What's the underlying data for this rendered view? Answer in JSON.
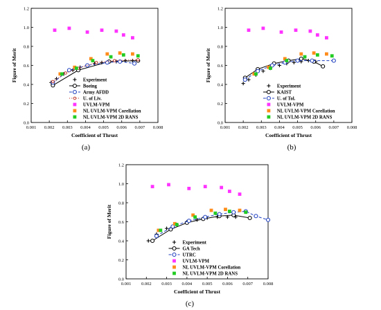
{
  "chart_data": [
    {
      "type": "scatter",
      "panel_label": "(a)",
      "xlabel": "Coefficient of Thrust",
      "ylabel": "Figure of Merit",
      "xlim": [
        0.001,
        0.008
      ],
      "ylim": [
        0.0,
        1.2
      ],
      "xticks": [
        "0.001",
        "0.002",
        "0.003",
        "0.004",
        "0.005",
        "0.006",
        "0.007",
        "0.008"
      ],
      "yticks": [
        "0.0",
        "0.2",
        "0.4",
        "0.6",
        "0.8",
        "1.0",
        "1.2"
      ],
      "legend_position": "bottom-right",
      "series": [
        {
          "name": "Experiment",
          "marker": "plus",
          "line": "none",
          "color": "#000000",
          "x": [
            0.0021,
            0.0024,
            0.0028,
            0.0033,
            0.0037,
            0.0041,
            0.0045,
            0.0049,
            0.0053,
            0.0057,
            0.0062,
            0.0066
          ],
          "y": [
            0.42,
            0.46,
            0.51,
            0.55,
            0.58,
            0.6,
            0.62,
            0.63,
            0.64,
            0.64,
            0.65,
            0.65
          ]
        },
        {
          "name": "Boeing",
          "marker": "circle",
          "line": "solid",
          "color": "#000000",
          "x": [
            0.0022,
            0.0036,
            0.0053,
            0.0069
          ],
          "y": [
            0.39,
            0.55,
            0.64,
            0.65
          ]
        },
        {
          "name": "Army AFDD",
          "marker": "circle",
          "line": "dash",
          "color": "#1f3fbf",
          "x": [
            0.0022,
            0.0031,
            0.0041,
            0.0052,
            0.0059,
            0.0067
          ],
          "y": [
            0.42,
            0.55,
            0.6,
            0.63,
            0.64,
            0.62
          ]
        },
        {
          "name": "U. of Liv.",
          "marker": "circle-small",
          "line": "dot",
          "color": "#c0392b",
          "x": [
            0.0022,
            0.0029,
            0.0036,
            0.0046,
            0.0056,
            0.0069
          ],
          "y": [
            0.43,
            0.52,
            0.57,
            0.63,
            0.65,
            0.66
          ]
        },
        {
          "name": "UVLM-VPM",
          "marker": "square",
          "line": "none",
          "color": "#ff33ff",
          "x": [
            0.0023,
            0.0031,
            0.0041,
            0.0049,
            0.0057,
            0.0061,
            0.0066
          ],
          "y": [
            0.97,
            0.99,
            0.95,
            0.97,
            0.96,
            0.92,
            0.89
          ]
        },
        {
          "name": "NL UVLM-VPM Corellation",
          "marker": "square",
          "line": "none",
          "color": "#ff8c1a",
          "x": [
            0.0026,
            0.0034,
            0.0043,
            0.0052,
            0.0059,
            0.0066
          ],
          "y": [
            0.51,
            0.58,
            0.67,
            0.72,
            0.73,
            0.72
          ]
        },
        {
          "name": "NL UVLM-VPM 2D RANS",
          "marker": "square",
          "line": "none",
          "color": "#22cc22",
          "x": [
            0.0027,
            0.0035,
            0.0044,
            0.0054,
            0.0061,
            0.0069
          ],
          "y": [
            0.51,
            0.57,
            0.65,
            0.69,
            0.71,
            0.7
          ]
        }
      ]
    },
    {
      "type": "scatter",
      "panel_label": "(b)",
      "xlabel": "Coefficient of Thrust",
      "ylabel": "Figure of Merit",
      "xlim": [
        0.001,
        0.008
      ],
      "ylim": [
        0.0,
        1.2
      ],
      "xticks": [
        "0.001",
        "0.002",
        "0.003",
        "0.004",
        "0.005",
        "0.006",
        "0.007",
        "0.008"
      ],
      "yticks": [
        "0.0",
        "0.2",
        "0.4",
        "0.6",
        "0.8",
        "1.0",
        "1.2"
      ],
      "legend_position": "bottom-right",
      "series": [
        {
          "name": "Experiment",
          "marker": "plus",
          "line": "none",
          "color": "#000000",
          "x": [
            0.002,
            0.0023,
            0.0027,
            0.0031,
            0.0035,
            0.004,
            0.0044,
            0.0048,
            0.0052,
            0.0056,
            0.006
          ],
          "y": [
            0.41,
            0.45,
            0.5,
            0.54,
            0.57,
            0.6,
            0.62,
            0.63,
            0.64,
            0.65,
            0.64
          ]
        },
        {
          "name": "KAIST",
          "marker": "circle",
          "line": "solid",
          "color": "#000000",
          "x": [
            0.0021,
            0.0028,
            0.0037,
            0.0045,
            0.0052,
            0.0059,
            0.0064
          ],
          "y": [
            0.47,
            0.56,
            0.62,
            0.65,
            0.67,
            0.64,
            0.59
          ]
        },
        {
          "name": "U. of Tol.",
          "marker": "circle",
          "line": "dash",
          "color": "#1f3fbf",
          "x": [
            0.0021,
            0.0028,
            0.0036,
            0.0043,
            0.005,
            0.0058,
            0.007
          ],
          "y": [
            0.45,
            0.54,
            0.6,
            0.63,
            0.65,
            0.65,
            0.65
          ]
        },
        {
          "name": "UVLM-VPM",
          "marker": "square",
          "line": "none",
          "color": "#ff33ff",
          "x": [
            0.0023,
            0.0031,
            0.0041,
            0.0049,
            0.0057,
            0.0061,
            0.0066
          ],
          "y": [
            0.97,
            0.99,
            0.95,
            0.97,
            0.96,
            0.92,
            0.89
          ]
        },
        {
          "name": "NL UVLM-VPM Corellation",
          "marker": "square",
          "line": "none",
          "color": "#ff8c1a",
          "x": [
            0.0026,
            0.0034,
            0.0043,
            0.0052,
            0.0059,
            0.0066
          ],
          "y": [
            0.51,
            0.58,
            0.67,
            0.72,
            0.73,
            0.72
          ]
        },
        {
          "name": "NL UVLM-VPM 2D RANS",
          "marker": "square",
          "line": "none",
          "color": "#22cc22",
          "x": [
            0.0027,
            0.0035,
            0.0044,
            0.0054,
            0.0061,
            0.0069
          ],
          "y": [
            0.51,
            0.57,
            0.65,
            0.69,
            0.71,
            0.7
          ]
        }
      ]
    },
    {
      "type": "scatter",
      "panel_label": "(c)",
      "xlabel": "Coefficient of Thrust",
      "ylabel": "Figure of Merit",
      "xlim": [
        0.001,
        0.008
      ],
      "ylim": [
        0.0,
        1.2
      ],
      "xticks": [
        "0.001",
        "0.002",
        "0.003",
        "0.004",
        "0.005",
        "0.006",
        "0.007",
        "0.008"
      ],
      "yticks": [
        "0.0",
        "0.2",
        "0.4",
        "0.6",
        "0.8",
        "1.0",
        "1.2"
      ],
      "legend_position": "bottom-right",
      "series": [
        {
          "name": "Experiment",
          "marker": "plus",
          "line": "none",
          "color": "#000000",
          "x": [
            0.0021,
            0.0025,
            0.003,
            0.0035,
            0.004,
            0.0045,
            0.005,
            0.0055,
            0.006,
            0.0064
          ],
          "y": [
            0.4,
            0.47,
            0.53,
            0.57,
            0.6,
            0.62,
            0.64,
            0.65,
            0.65,
            0.65
          ]
        },
        {
          "name": "GA Tech",
          "marker": "circle",
          "line": "solid",
          "color": "#000000",
          "x": [
            0.0023,
            0.0032,
            0.004,
            0.0048,
            0.0056,
            0.0063,
            0.0071
          ],
          "y": [
            0.4,
            0.52,
            0.59,
            0.63,
            0.66,
            0.67,
            0.64
          ]
        },
        {
          "name": "UTRC",
          "marker": "circle",
          "line": "dash",
          "color": "#1f3fbf",
          "x": [
            0.0025,
            0.0033,
            0.0041,
            0.0049,
            0.0056,
            0.0063,
            0.0069,
            0.0074,
            0.008
          ],
          "y": [
            0.45,
            0.55,
            0.61,
            0.65,
            0.68,
            0.7,
            0.71,
            0.66,
            0.62
          ]
        },
        {
          "name": "UVLM-VPM",
          "marker": "square",
          "line": "none",
          "color": "#ff33ff",
          "x": [
            0.0023,
            0.0031,
            0.0041,
            0.0049,
            0.0057,
            0.0061,
            0.0066
          ],
          "y": [
            0.97,
            0.99,
            0.95,
            0.97,
            0.96,
            0.92,
            0.89
          ]
        },
        {
          "name": "NL UVLM-VPM Corellation",
          "marker": "square",
          "line": "none",
          "color": "#ff8c1a",
          "x": [
            0.0026,
            0.0034,
            0.0043,
            0.0052,
            0.0059,
            0.0066
          ],
          "y": [
            0.51,
            0.58,
            0.67,
            0.72,
            0.73,
            0.72
          ]
        },
        {
          "name": "NL UVLM-VPM 2D RANS",
          "marker": "square",
          "line": "none",
          "color": "#22cc22",
          "x": [
            0.0027,
            0.0035,
            0.0044,
            0.0054,
            0.0061,
            0.0069
          ],
          "y": [
            0.51,
            0.57,
            0.65,
            0.69,
            0.71,
            0.7
          ]
        }
      ]
    }
  ]
}
